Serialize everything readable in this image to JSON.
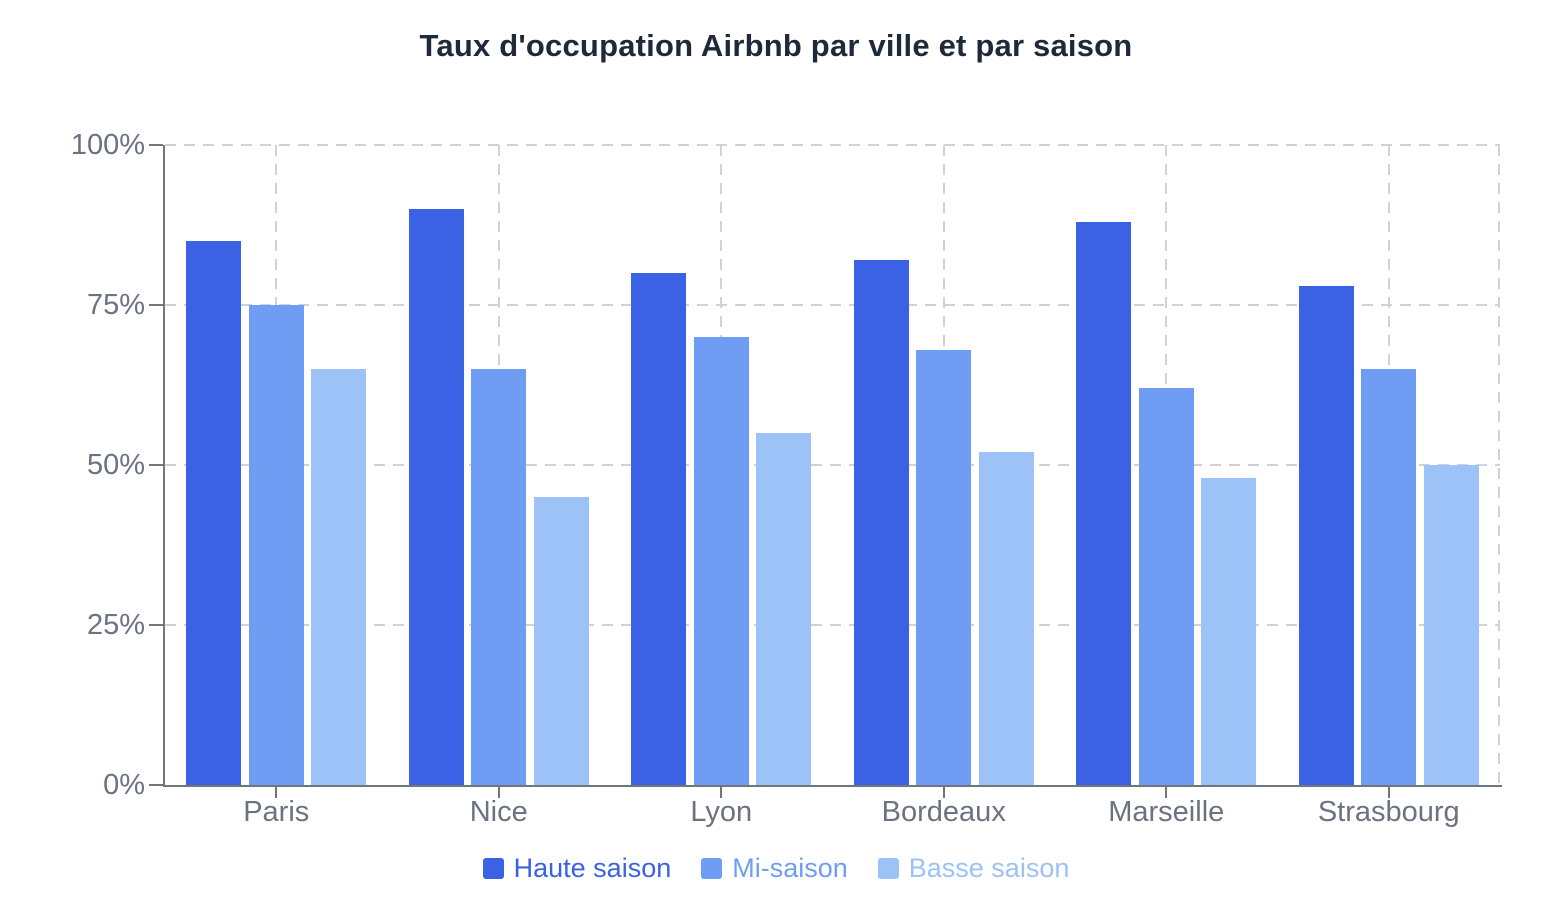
{
  "title": "Taux d'occupation Airbnb par ville et par saison",
  "chart_data": {
    "type": "bar",
    "title": "Taux d'occupation Airbnb par ville et par saison",
    "categories": [
      "Paris",
      "Nice",
      "Lyon",
      "Bordeaux",
      "Marseille",
      "Strasbourg"
    ],
    "series": [
      {
        "name": "Haute saison",
        "color": "#3b61e4",
        "values": [
          85,
          90,
          80,
          82,
          88,
          78
        ]
      },
      {
        "name": "Mi-saison",
        "color": "#6f9df3",
        "values": [
          75,
          65,
          70,
          68,
          62,
          65
        ]
      },
      {
        "name": "Basse saison",
        "color": "#9dc2f7",
        "values": [
          65,
          45,
          55,
          52,
          48,
          50
        ]
      }
    ],
    "unit": "%",
    "ylim": [
      0,
      100
    ],
    "y_ticks": [
      {
        "value": 0,
        "label": "0%"
      },
      {
        "value": 25,
        "label": "25%"
      },
      {
        "value": 50,
        "label": "50%"
      },
      {
        "value": 75,
        "label": "75%"
      },
      {
        "value": 100,
        "label": "100%"
      }
    ],
    "grid": true,
    "legend_position": "bottom",
    "xlabel": "",
    "ylabel": ""
  },
  "colors": {
    "background": "#ffffff",
    "title_text": "#1e2a3a",
    "axis_text": "#6b7280",
    "axis_line": "#70757e",
    "grid_line": "#d1d2d8"
  }
}
